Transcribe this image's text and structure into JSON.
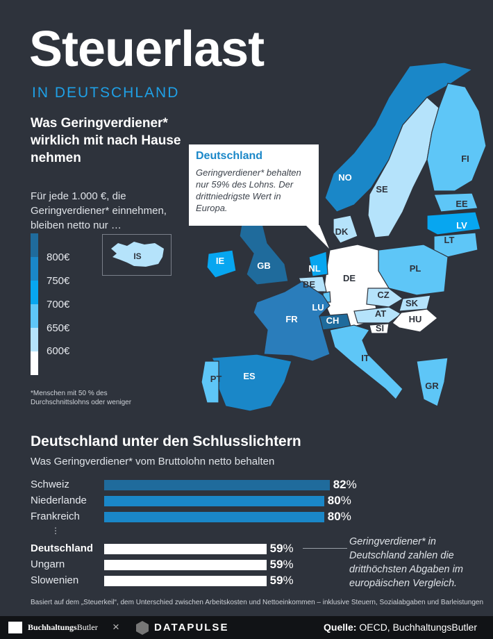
{
  "header": {
    "title": "Steuerlast",
    "subtitle": "IN DEUTSCHLAND",
    "question": "Was Geringverdiener* wirklich mit nach Hause nehmen"
  },
  "legend": {
    "title": "Für jede 1.000 €, die Geringverdiener* einnehmen, bleiben netto nur …",
    "labels": [
      "800€",
      "750€",
      "700€",
      "650€",
      "600€"
    ],
    "colors": [
      "#1f6b9c",
      "#1a87c8",
      "#07a6f0",
      "#5ec6f7",
      "#b5e3fb",
      "#ffffff"
    ]
  },
  "footnote": "*Menschen mit 50 % des Durchschnittslohns oder weniger",
  "callout": {
    "title": "Deutschland",
    "body": "Geringverdiener* behalten nur 59% des Lohns. Der drittniedrigste Wert in Europa."
  },
  "map": {
    "labels": {
      "IS": "IS",
      "NO": "NO",
      "SE": "SE",
      "FI": "FI",
      "EE": "EE",
      "LV": "LV",
      "LT": "LT",
      "DK": "DK",
      "IE": "IE",
      "GB": "GB",
      "NL": "NL",
      "BE": "BE",
      "LU": "LU",
      "DE": "DE",
      "PL": "PL",
      "CZ": "CZ",
      "SK": "SK",
      "AT": "AT",
      "HU": "HU",
      "CH": "CH",
      "SI": "SI",
      "FR": "FR",
      "IT": "IT",
      "ES": "ES",
      "PT": "PT",
      "GR": "GR"
    }
  },
  "chart_data": {
    "type": "bar",
    "title": "Deutschland unter den Schlusslichtern",
    "subtitle": "Was Geringverdiener* vom Bruttolohn netto behalten",
    "categories": [
      "Schweiz",
      "Niederlande",
      "Frankreich",
      "Deutschland",
      "Ungarn",
      "Slowenien"
    ],
    "values": [
      82,
      80,
      80,
      59,
      59,
      59
    ],
    "value_labels": [
      "82",
      "80",
      "80",
      "59",
      "59",
      "59"
    ],
    "unit": "%",
    "ellipsis": "⋮",
    "colors": [
      "#1f6b9c",
      "#1a87c8",
      "#1a87c8",
      "#ffffff",
      "#ffffff",
      "#ffffff"
    ],
    "annotation": "Geringverdiener* in Deutschland zahlen die dritthöchsten Abgaben im europäischen Vergleich."
  },
  "basis": "Basiert auf dem „Steuerkeil“, dem Unterschied zwischen Arbeitskosten und Nettoeinkommen – inklusive Steuern, Sozialabgaben und Barleistungen",
  "footer": {
    "brand1_a": "Buchhaltungs",
    "brand1_b": "Butler",
    "times": "×",
    "brand2": "DATAPULSE",
    "source_label": "Quelle:",
    "source": "OECD, BuchhaltungsButler"
  }
}
